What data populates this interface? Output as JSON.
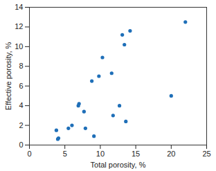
{
  "chart_data": {
    "type": "scatter",
    "x_label": "Total porosity, %",
    "y_label": "Effective porosity, %",
    "x": [
      3.8,
      4.0,
      4.1,
      5.5,
      6.0,
      6.9,
      7.0,
      7.7,
      7.9,
      8.8,
      9.1,
      9.8,
      10.3,
      11.6,
      11.8,
      12.7,
      13.1,
      13.4,
      13.6,
      14.2,
      20.0,
      22.0
    ],
    "values": [
      1.5,
      0.6,
      0.7,
      1.7,
      2.0,
      4.0,
      4.2,
      3.4,
      1.7,
      6.5,
      0.9,
      7.0,
      8.9,
      7.3,
      3.0,
      4.0,
      11.2,
      10.2,
      2.4,
      11.6,
      5.0,
      12.5
    ],
    "color": "#1f6fb8",
    "marker": "circle",
    "xlim": [
      0,
      25
    ],
    "xticks": [
      0,
      5,
      10,
      15,
      20,
      25
    ],
    "ylim": [
      0,
      14
    ],
    "yticks": [
      0,
      2,
      4,
      6,
      8,
      10,
      12,
      14
    ],
    "grid": false
  }
}
